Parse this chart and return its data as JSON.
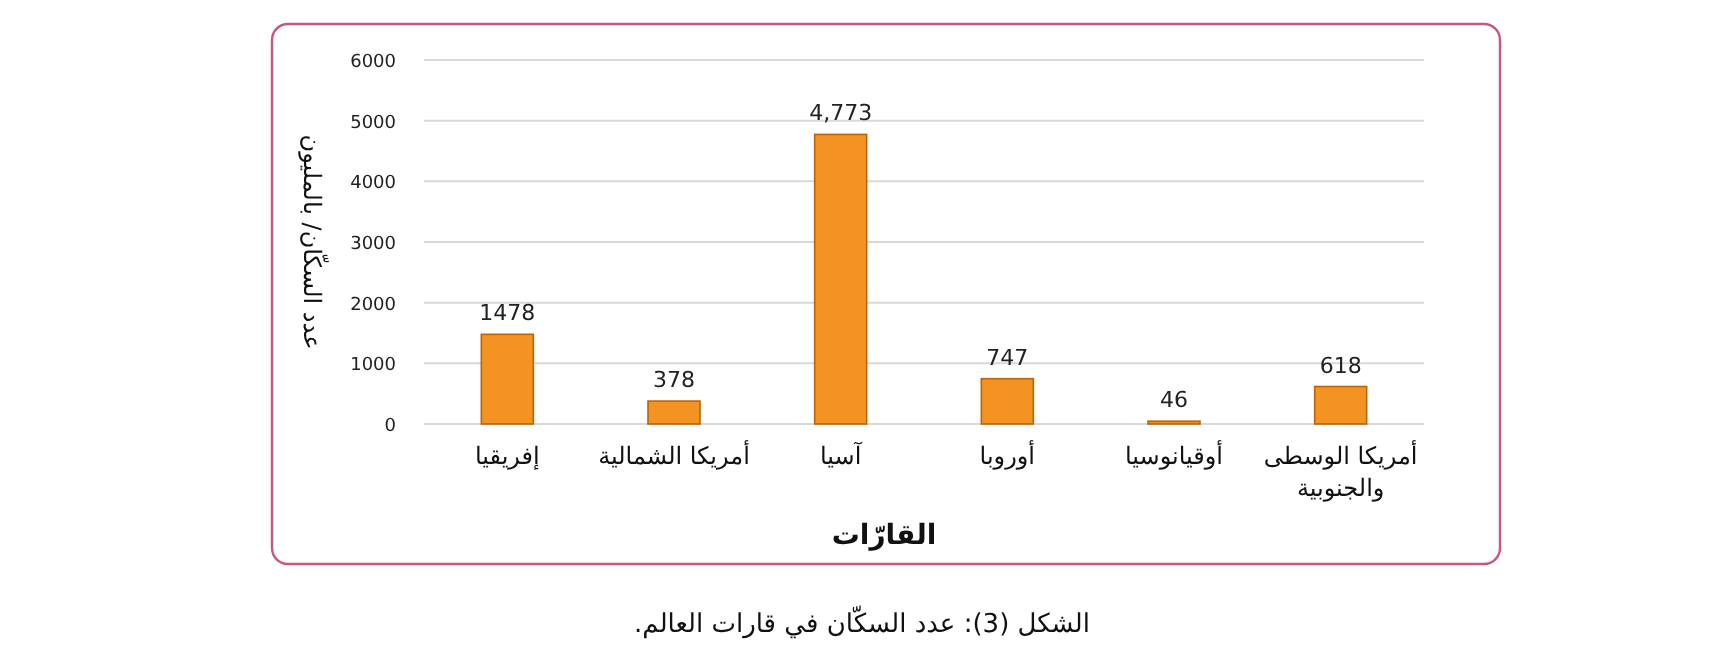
{
  "chart_data": {
    "type": "bar",
    "xlabel": "القارّات",
    "ylabel": "عدد السكّان/ بالمليون",
    "categories": [
      "إفريقيا",
      "أمريكا الشمالية",
      "آسيا",
      "أوروبا",
      "أوقيانوسيا",
      "أمريكا الوسطى والجنوبية"
    ],
    "values": [
      1478,
      378,
      4773,
      747,
      46,
      618
    ],
    "value_labels": [
      "1478",
      "378",
      "4,773",
      "747",
      "46",
      "618"
    ],
    "color": "#f39321",
    "ylim": [
      0,
      6000
    ],
    "yticks": [
      0,
      1000,
      2000,
      3000,
      4000,
      5000,
      6000
    ],
    "grid": "y",
    "annotations": [
      "الشكل (3): عدد السكّان في قارات العالم."
    ]
  }
}
